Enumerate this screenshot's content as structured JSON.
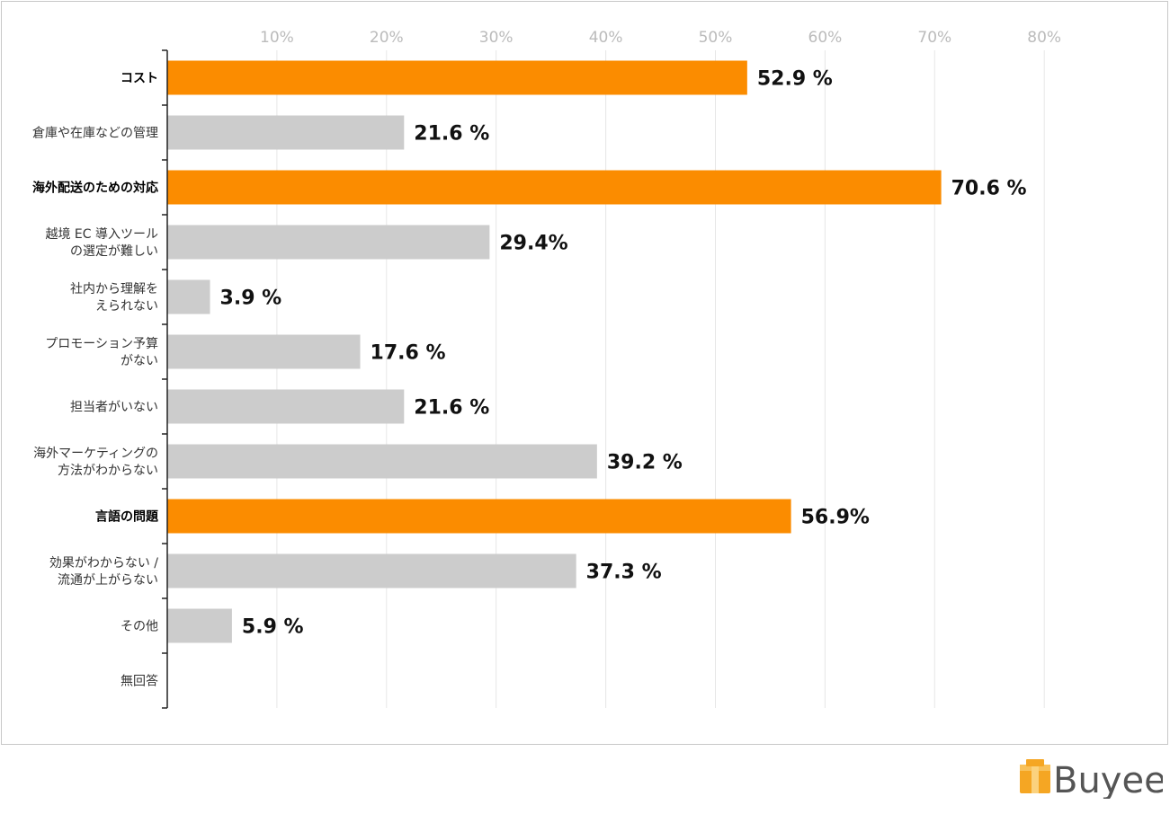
{
  "chart_data": {
    "type": "bar",
    "orientation": "horizontal",
    "x_ticks": [
      "10%",
      "20%",
      "30%",
      "40%",
      "50%",
      "60%",
      "70%",
      "80%"
    ],
    "xlim": [
      0,
      90
    ],
    "grid": true,
    "categories": [
      {
        "label": [
          "コスト"
        ],
        "value": 52.9,
        "value_label": "52.9 %",
        "highlight": true
      },
      {
        "label": [
          "倉庫や在庫などの管理"
        ],
        "value": 21.6,
        "value_label": "21.6 %",
        "highlight": false
      },
      {
        "label": [
          "海外配送のための対応"
        ],
        "value": 70.6,
        "value_label": "70.6 %",
        "highlight": true
      },
      {
        "label": [
          "越境 EC 導入ツール",
          "の選定が難しい"
        ],
        "value": 29.4,
        "value_label": "29.4%",
        "highlight": false
      },
      {
        "label": [
          "社内から理解を",
          "えられない"
        ],
        "value": 3.9,
        "value_label": "3.9 %",
        "highlight": false
      },
      {
        "label": [
          "プロモーション予算",
          "がない"
        ],
        "value": 17.6,
        "value_label": "17.6 %",
        "highlight": false
      },
      {
        "label": [
          "担当者がいない"
        ],
        "value": 21.6,
        "value_label": "21.6 %",
        "highlight": false
      },
      {
        "label": [
          "海外マーケティングの",
          "方法がわからない"
        ],
        "value": 39.2,
        "value_label": "39.2 %",
        "highlight": false
      },
      {
        "label": [
          "言語の問題"
        ],
        "value": 56.9,
        "value_label": "56.9%",
        "highlight": true
      },
      {
        "label": [
          "効果がわからない /",
          "流通が上がらない"
        ],
        "value": 37.3,
        "value_label": "37.3 %",
        "highlight": false
      },
      {
        "label": [
          "その他"
        ],
        "value": 5.9,
        "value_label": "5.9 %",
        "highlight": false
      },
      {
        "label": [
          "無回答"
        ],
        "value": 0,
        "value_label": "",
        "highlight": false
      }
    ]
  },
  "colors": {
    "highlight": "#fb8c00",
    "normal": "#cccccc",
    "grid": "#e6e6e6",
    "axis": "#222222"
  },
  "logo": {
    "brand": "Buyee",
    "icon": "box-icon"
  }
}
